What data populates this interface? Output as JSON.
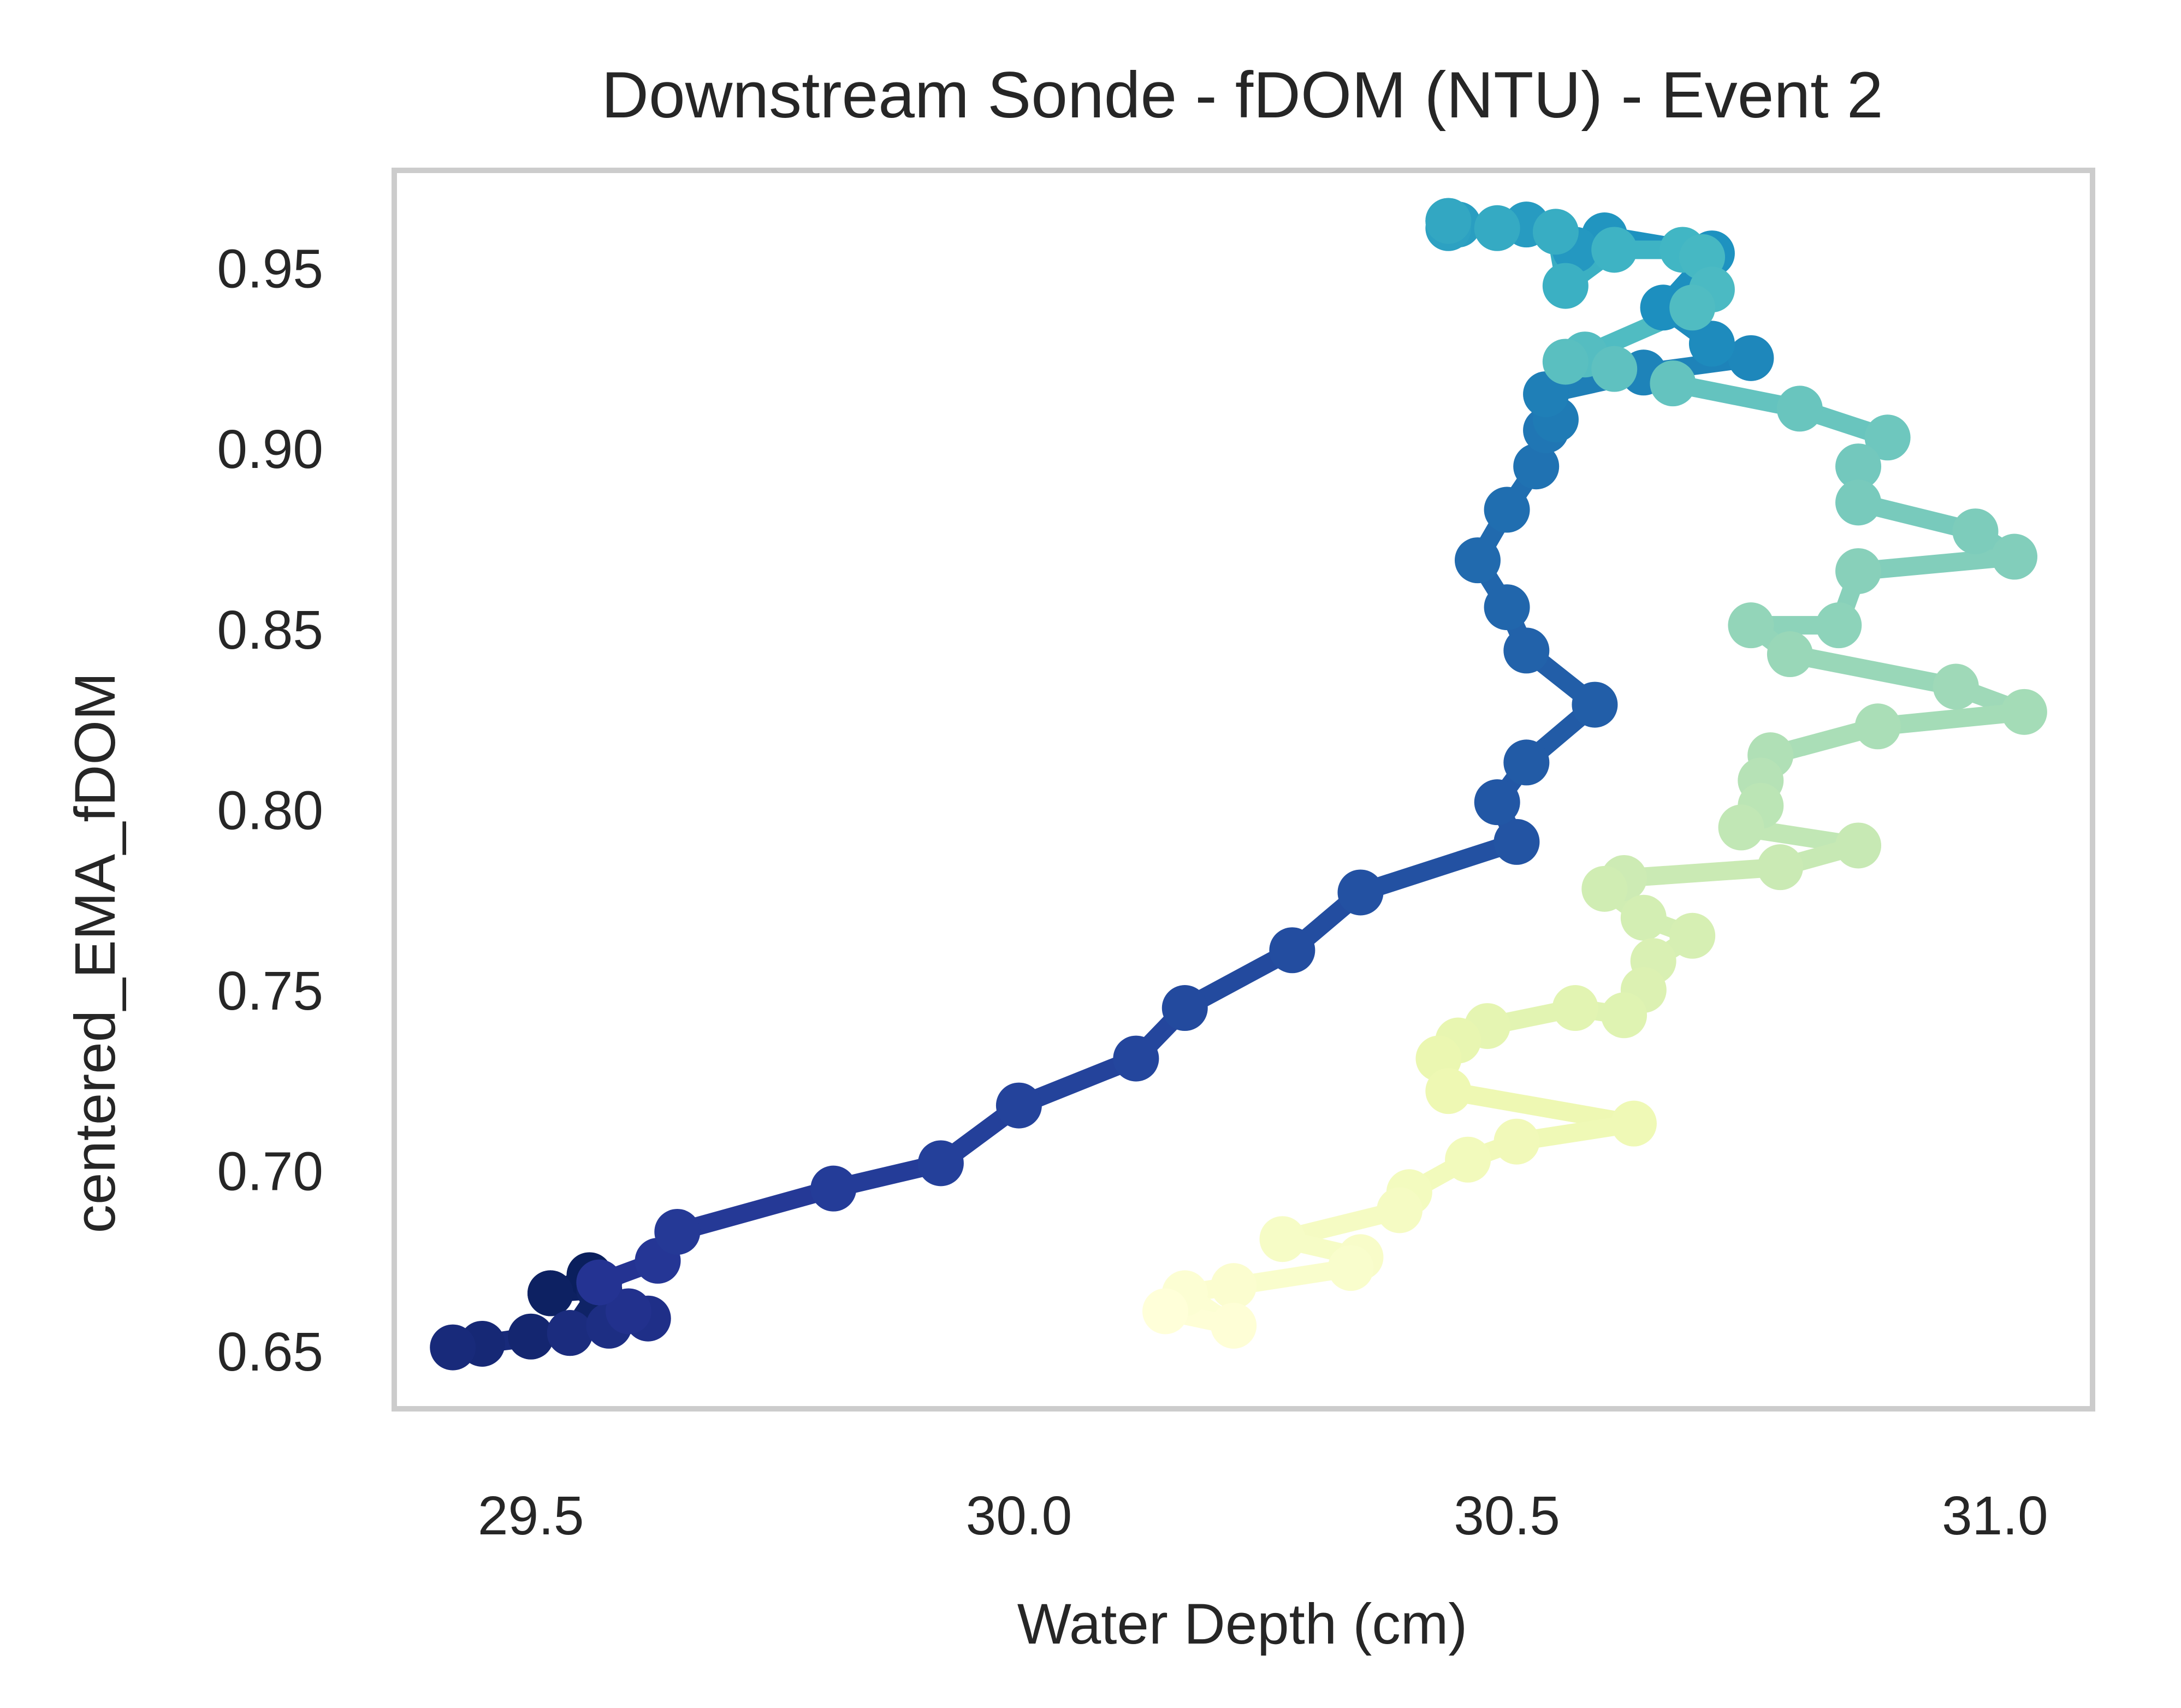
{
  "chart_data": {
    "type": "scatter",
    "title": "Downstream Sonde - fDOM (NTU) - Event 2",
    "xlabel": "Water Depth (cm)",
    "ylabel": "centered_EMA_fDOM",
    "xlim": [
      29.36,
      31.1
    ],
    "ylim": [
      0.634,
      0.977
    ],
    "xticks": [
      29.5,
      30.0,
      30.5,
      31.0
    ],
    "xtick_labels": [
      "29.5",
      "30.0",
      "30.5",
      "31.0"
    ],
    "yticks": [
      0.65,
      0.7,
      0.75,
      0.8,
      0.85,
      0.9,
      0.95
    ],
    "ytick_labels": [
      "0.65",
      "0.70",
      "0.75",
      "0.80",
      "0.85",
      "0.90",
      "0.95"
    ],
    "grid": false,
    "legend": "none",
    "colormap": [
      "#081d58",
      "#253494",
      "#225ea8",
      "#1d91c0",
      "#41b6c4",
      "#7fcdbb",
      "#c7e9b4",
      "#edf8b1",
      "#ffffd9"
    ],
    "frame_color": "#cccccc",
    "series": [
      {
        "x": [
          29.52,
          29.56,
          29.52,
          29.57,
          29.54,
          29.5,
          29.45,
          29.42,
          29.54,
          29.58,
          29.62,
          29.6,
          29.57,
          29.63,
          29.65,
          29.81,
          29.92,
          30.0,
          30.12,
          30.17,
          30.28,
          30.35,
          30.51,
          30.49,
          30.52,
          30.59,
          30.52,
          30.5,
          30.47,
          30.5,
          30.53,
          30.54,
          30.55,
          30.54,
          30.64,
          30.75,
          30.71,
          30.66,
          30.71,
          30.6,
          30.57,
          30.52,
          30.45,
          30.44,
          30.44
        ],
        "y": [
          0.666,
          0.671,
          0.666,
          0.667,
          0.655,
          0.654,
          0.652,
          0.651,
          0.655,
          0.657,
          0.659,
          0.661,
          0.669,
          0.675,
          0.683,
          0.695,
          0.702,
          0.718,
          0.731,
          0.745,
          0.761,
          0.777,
          0.791,
          0.802,
          0.813,
          0.829,
          0.844,
          0.856,
          0.869,
          0.883,
          0.895,
          0.905,
          0.908,
          0.915,
          0.921,
          0.925,
          0.929,
          0.939,
          0.954,
          0.959,
          0.955,
          0.962,
          0.962,
          0.961,
          0.963
        ]
      },
      {
        "x": [
          30.44,
          30.49,
          30.55,
          30.56,
          30.61,
          30.68,
          30.7,
          30.71,
          30.69,
          30.58,
          30.56,
          30.61,
          30.67,
          30.8,
          30.89,
          30.86,
          30.86,
          30.98,
          31.02,
          30.86,
          30.84,
          30.75,
          30.79,
          30.96,
          31.03,
          30.88,
          30.77,
          30.76,
          30.76,
          30.74,
          30.86,
          30.78,
          30.62,
          30.6,
          30.64,
          30.69,
          30.65,
          30.64,
          30.62,
          30.57,
          30.48,
          30.45,
          30.43,
          30.44,
          30.63,
          30.51,
          30.46,
          30.4,
          30.39,
          30.27,
          30.35,
          30.34,
          30.22,
          30.17,
          30.22,
          30.15
        ],
        "y": [
          0.963,
          0.961,
          0.96,
          0.945,
          0.955,
          0.955,
          0.953,
          0.944,
          0.939,
          0.926,
          0.924,
          0.922,
          0.918,
          0.911,
          0.903,
          0.895,
          0.885,
          0.877,
          0.87,
          0.866,
          0.851,
          0.851,
          0.843,
          0.834,
          0.827,
          0.823,
          0.815,
          0.808,
          0.801,
          0.795,
          0.79,
          0.784,
          0.781,
          0.778,
          0.77,
          0.765,
          0.758,
          0.75,
          0.743,
          0.745,
          0.74,
          0.736,
          0.731,
          0.722,
          0.713,
          0.708,
          0.703,
          0.694,
          0.689,
          0.681,
          0.676,
          0.673,
          0.668,
          0.666,
          0.657,
          0.661
        ]
      }
    ]
  }
}
